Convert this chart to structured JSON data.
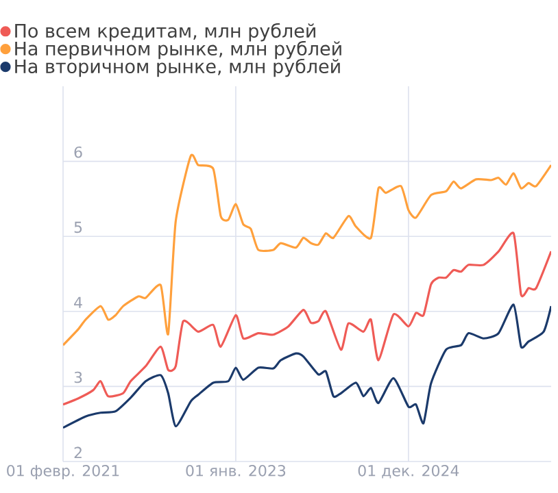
{
  "chart_data": {
    "type": "line",
    "series": [
      {
        "name": "По всем кредитам, млн рублей",
        "color": "#ef5b56",
        "x": [
          "2021-02",
          "2021-04",
          "2021-06",
          "2021-07",
          "2021-08",
          "2021-10",
          "2021-11",
          "2022-01",
          "2022-03",
          "2022-04",
          "2022-05",
          "2022-06",
          "2022-08",
          "2022-10",
          "2022-11",
          "2023-01",
          "2023-02",
          "2023-04",
          "2023-06",
          "2023-08",
          "2023-10",
          "2023-11",
          "2023-12",
          "2024-01",
          "2024-03",
          "2024-04",
          "2024-06",
          "2024-07",
          "2024-08",
          "2024-10",
          "2024-12",
          "2025-01",
          "2025-02",
          "2025-03",
          "2025-04",
          "2025-05",
          "2025-06",
          "2025-07",
          "2025-08",
          "2025-10",
          "2025-12",
          "2026-02",
          "2026-03",
          "2026-04",
          "2026-05",
          "2026-07"
        ],
        "values": [
          2.76,
          2.84,
          2.95,
          3.07,
          2.87,
          2.91,
          3.07,
          3.27,
          3.53,
          3.22,
          3.27,
          3.87,
          3.73,
          3.82,
          3.53,
          3.95,
          3.64,
          3.71,
          3.69,
          3.8,
          4.02,
          3.85,
          3.87,
          4.0,
          3.49,
          3.84,
          3.73,
          3.89,
          3.35,
          3.96,
          3.8,
          3.98,
          3.95,
          4.36,
          4.45,
          4.45,
          4.55,
          4.53,
          4.62,
          4.62,
          4.8,
          5.04,
          4.22,
          4.31,
          4.31,
          4.8
        ]
      },
      {
        "name": "На первичном рынке, млн рублей",
        "color": "#ffa03c",
        "x": [
          "2021-02",
          "2021-04",
          "2021-05",
          "2021-07",
          "2021-08",
          "2021-09",
          "2021-10",
          "2021-12",
          "2022-01",
          "2022-03",
          "2022-04",
          "2022-05",
          "2022-07",
          "2022-08",
          "2022-10",
          "2022-11",
          "2022-12",
          "2023-01",
          "2023-02",
          "2023-03",
          "2023-04",
          "2023-06",
          "2023-07",
          "2023-09",
          "2023-10",
          "2023-11",
          "2023-12",
          "2024-01",
          "2024-02",
          "2024-04",
          "2024-05",
          "2024-07",
          "2024-08",
          "2024-09",
          "2024-11",
          "2024-12",
          "2025-01",
          "2025-03",
          "2025-05",
          "2025-06",
          "2025-07",
          "2025-09",
          "2025-11",
          "2025-12",
          "2026-01",
          "2026-02",
          "2026-03",
          "2026-04",
          "2026-05",
          "2026-07"
        ],
        "values": [
          3.55,
          3.76,
          3.89,
          4.07,
          3.89,
          3.95,
          4.07,
          4.2,
          4.18,
          4.35,
          3.7,
          5.2,
          6.07,
          5.95,
          5.9,
          5.27,
          5.22,
          5.43,
          5.16,
          5.1,
          4.82,
          4.82,
          4.91,
          4.85,
          4.98,
          4.91,
          4.89,
          5.04,
          4.98,
          5.27,
          5.13,
          4.98,
          5.64,
          5.58,
          5.67,
          5.35,
          5.25,
          5.55,
          5.6,
          5.73,
          5.64,
          5.76,
          5.75,
          5.78,
          5.69,
          5.84,
          5.64,
          5.71,
          5.67,
          5.95
        ]
      },
      {
        "name": "На вторичном рынке, млн рублей",
        "color": "#1b3a6b",
        "x": [
          "2021-02",
          "2021-05",
          "2021-07",
          "2021-09",
          "2021-11",
          "2022-01",
          "2022-03",
          "2022-04",
          "2022-05",
          "2022-07",
          "2022-08",
          "2022-10",
          "2022-12",
          "2023-01",
          "2023-02",
          "2023-04",
          "2023-06",
          "2023-07",
          "2023-09",
          "2023-10",
          "2023-12",
          "2024-01",
          "2024-02",
          "2024-03",
          "2024-05",
          "2024-06",
          "2024-07",
          "2024-08",
          "2024-10",
          "2024-12",
          "2025-01",
          "2025-02",
          "2025-03",
          "2025-05",
          "2025-07",
          "2025-08",
          "2025-10",
          "2025-12",
          "2026-02",
          "2026-03",
          "2026-04",
          "2026-06",
          "2026-07"
        ],
        "values": [
          2.45,
          2.6,
          2.65,
          2.67,
          2.85,
          3.07,
          3.15,
          2.91,
          2.47,
          2.8,
          2.89,
          3.05,
          3.07,
          3.25,
          3.09,
          3.25,
          3.24,
          3.35,
          3.44,
          3.4,
          3.16,
          3.2,
          2.87,
          2.91,
          3.05,
          2.87,
          2.98,
          2.78,
          3.11,
          2.73,
          2.76,
          2.51,
          3.04,
          3.49,
          3.55,
          3.71,
          3.64,
          3.71,
          4.09,
          3.53,
          3.6,
          3.73,
          4.07
        ]
      }
    ],
    "xlim": [
      "2021-02",
      "2026-07"
    ],
    "xticks": [
      {
        "value": "2021-02",
        "label": "01 февр. 2021"
      },
      {
        "value": "2023-01",
        "label": "01 янв. 2023"
      },
      {
        "value": "2024-12",
        "label": "01 дек. 2024"
      }
    ],
    "ylim": [
      2,
      7
    ],
    "yticks": [
      2,
      3,
      4,
      5,
      6
    ],
    "grid": true,
    "legend": "top left"
  }
}
